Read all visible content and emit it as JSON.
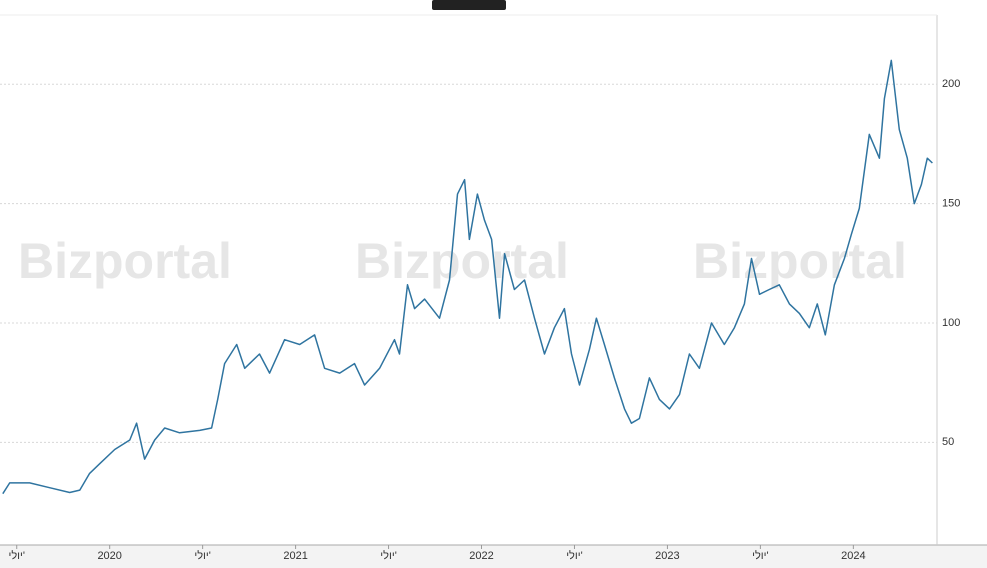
{
  "chart_data": {
    "type": "line",
    "watermark": "Bizportal",
    "x": [
      2019.425,
      2019.462,
      2019.57,
      2019.677,
      2019.785,
      2019.839,
      2019.892,
      2019.946,
      2020.027,
      2020.108,
      2020.145,
      2020.188,
      2020.242,
      2020.296,
      2020.376,
      2020.484,
      2020.548,
      2020.581,
      2020.618,
      2020.683,
      2020.726,
      2020.806,
      2020.86,
      2020.941,
      2021.022,
      2021.102,
      2021.156,
      2021.237,
      2021.317,
      2021.371,
      2021.452,
      2021.532,
      2021.559,
      2021.602,
      2021.64,
      2021.694,
      2021.774,
      2021.828,
      2021.871,
      2021.909,
      2021.935,
      2021.978,
      2022.016,
      2022.054,
      2022.097,
      2022.124,
      2022.177,
      2022.231,
      2022.285,
      2022.339,
      2022.392,
      2022.446,
      2022.484,
      2022.527,
      2022.581,
      2022.618,
      2022.661,
      2022.715,
      2022.769,
      2022.806,
      2022.849,
      2022.903,
      2022.957,
      2023.011,
      2023.065,
      2023.118,
      2023.172,
      2023.237,
      2023.306,
      2023.36,
      2023.414,
      2023.452,
      2023.495,
      2023.548,
      2023.602,
      2023.656,
      2023.71,
      2023.763,
      2023.806,
      2023.849,
      2023.898,
      2023.952,
      2023.989,
      2024.032,
      2024.086,
      2024.14,
      2024.167,
      2024.204,
      2024.247,
      2024.29,
      2024.328,
      2024.366,
      2024.398,
      2024.425
    ],
    "series": [
      {
        "color": "#2f74a0",
        "values": [
          28.5,
          33,
          33,
          31,
          29,
          30,
          37,
          41,
          47,
          51,
          58,
          43,
          51,
          56,
          54,
          55,
          56,
          68,
          83,
          91,
          81,
          87,
          79,
          93,
          91,
          95,
          81,
          79,
          83,
          74,
          81,
          93,
          87,
          116,
          106,
          110,
          102,
          118,
          154,
          160,
          135,
          154,
          143,
          135,
          102,
          129,
          114,
          118,
          102,
          87,
          98,
          106,
          87,
          74,
          89,
          102,
          91,
          77,
          64,
          58,
          60,
          77,
          68,
          64,
          70,
          87,
          81,
          100,
          91,
          98,
          108,
          127,
          112,
          114,
          116,
          108,
          104,
          98,
          108,
          95,
          116,
          127,
          137,
          148,
          179,
          169,
          194,
          210,
          181,
          169,
          150,
          158,
          169,
          167
        ]
      }
    ],
    "xlim": [
      2019.41,
      2024.45
    ],
    "ylim": [
      7,
      229
    ],
    "xticks": [
      {
        "value": 2019.5,
        "label": "יולי'"
      },
      2020,
      {
        "value": 2020.5,
        "label": "יולי'"
      },
      2021,
      {
        "value": 2021.5,
        "label": "יולי'"
      },
      2022,
      {
        "value": 2022.5,
        "label": "יולי'"
      },
      2023,
      {
        "value": 2023.5,
        "label": "יולי'"
      },
      2024
    ],
    "yticks": [
      50,
      100,
      150,
      200
    ],
    "grid": true
  }
}
